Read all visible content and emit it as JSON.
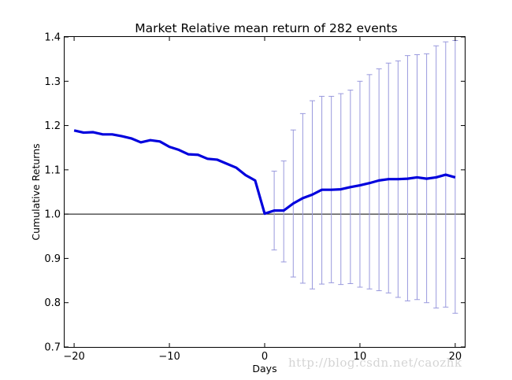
{
  "chart_data": {
    "type": "line",
    "title": "Market Relative mean return of 282 events",
    "xlabel": "Days",
    "ylabel": "Cumulative Returns",
    "xlim": [
      -21,
      21
    ],
    "ylim": [
      0.7,
      1.4
    ],
    "xticks": [
      -20,
      -10,
      0,
      10,
      20
    ],
    "xtick_labels": [
      "−20",
      "−10",
      "0",
      "10",
      "20"
    ],
    "yticks": [
      0.7,
      0.8,
      0.9,
      1.0,
      1.1,
      1.2,
      1.3,
      1.4
    ],
    "ytick_labels": [
      "0.7",
      "0.8",
      "0.9",
      "1.0",
      "1.1",
      "1.2",
      "1.3",
      "1.4"
    ],
    "grid": false,
    "reference_line_y": 1.0,
    "series": [
      {
        "color": "#0000dd",
        "x": [
          -20,
          -19,
          -18,
          -17,
          -16,
          -15,
          -14,
          -13,
          -12,
          -11,
          -10,
          -9,
          -8,
          -7,
          -6,
          -5,
          -4,
          -3,
          -2,
          -1,
          0,
          1,
          2,
          3,
          4,
          5,
          6,
          7,
          8,
          9,
          10,
          11,
          12,
          13,
          14,
          15,
          16,
          17,
          18,
          19,
          20
        ],
        "y": [
          1.189,
          1.184,
          1.185,
          1.18,
          1.18,
          1.176,
          1.171,
          1.162,
          1.167,
          1.164,
          1.152,
          1.145,
          1.135,
          1.134,
          1.125,
          1.123,
          1.114,
          1.105,
          1.088,
          1.076,
          1.001,
          1.008,
          1.008,
          1.024,
          1.036,
          1.044,
          1.055,
          1.055,
          1.056,
          1.061,
          1.065,
          1.07,
          1.076,
          1.079,
          1.079,
          1.08,
          1.083,
          1.08,
          1.083,
          1.089,
          1.083
        ],
        "error_bars": {
          "color": "#9999dd",
          "x": [
            1,
            2,
            3,
            4,
            5,
            6,
            7,
            8,
            9,
            10,
            11,
            12,
            13,
            14,
            15,
            16,
            17,
            18,
            19,
            20
          ],
          "low": [
            0.919,
            0.892,
            0.858,
            0.844,
            0.831,
            0.842,
            0.845,
            0.841,
            0.843,
            0.835,
            0.831,
            0.827,
            0.822,
            0.812,
            0.804,
            0.807,
            0.8,
            0.788,
            0.79,
            0.776
          ],
          "high": [
            1.097,
            1.12,
            1.19,
            1.227,
            1.256,
            1.266,
            1.266,
            1.272,
            1.28,
            1.3,
            1.315,
            1.328,
            1.341,
            1.346,
            1.358,
            1.36,
            1.362,
            1.38,
            1.389,
            1.392
          ]
        }
      }
    ]
  },
  "watermark": "http://blog.csdn.net/caozhk"
}
